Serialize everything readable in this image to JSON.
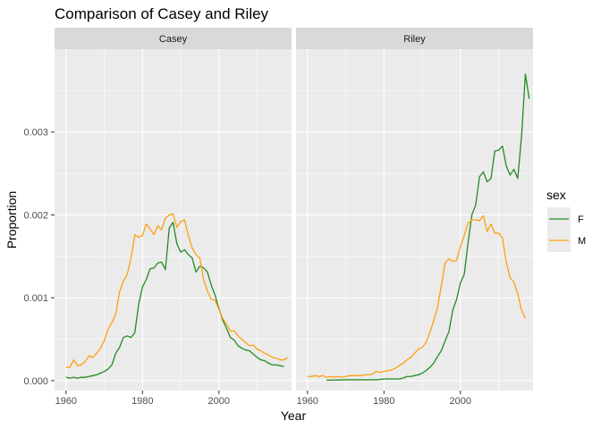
{
  "chart_data": {
    "type": "line",
    "title": "Comparison of Casey and Riley",
    "xlabel": "Year",
    "ylabel": "Proportion",
    "xlim": [
      1957,
      2019
    ],
    "ylim": [
      -0.00012,
      0.004
    ],
    "x_ticks": [
      1960,
      1980,
      2000
    ],
    "x_tick_labels": [
      "1960",
      "1980",
      "2000"
    ],
    "y_ticks": [
      0,
      0.001,
      0.002,
      0.003
    ],
    "y_tick_labels": [
      "0.000",
      "0.001",
      "0.002",
      "0.003"
    ],
    "grid": true,
    "legend": {
      "title": "sex",
      "position": "right",
      "entries": [
        {
          "label": "F",
          "color": "#228B22"
        },
        {
          "label": "M",
          "color": "#FF9F0F"
        }
      ]
    },
    "facets": [
      {
        "label": "Casey",
        "series": [
          {
            "name": "F",
            "color": "#228B22",
            "points": [
              [
                1960,
                4e-05
              ],
              [
                1961,
                3e-05
              ],
              [
                1962,
                4e-05
              ],
              [
                1963,
                3e-05
              ],
              [
                1964,
                4e-05
              ],
              [
                1965,
                4e-05
              ],
              [
                1966,
                5e-05
              ],
              [
                1967,
                6e-05
              ],
              [
                1968,
                7e-05
              ],
              [
                1969,
                9e-05
              ],
              [
                1970,
                0.00011
              ],
              [
                1971,
                0.00014
              ],
              [
                1972,
                0.00019
              ],
              [
                1973,
                0.00033
              ],
              [
                1974,
                0.0004
              ],
              [
                1975,
                0.00052
              ],
              [
                1976,
                0.00054
              ],
              [
                1977,
                0.00052
              ],
              [
                1978,
                0.00058
              ],
              [
                1979,
                0.00092
              ],
              [
                1980,
                0.00113
              ],
              [
                1981,
                0.00122
              ],
              [
                1982,
                0.00135
              ],
              [
                1983,
                0.00136
              ],
              [
                1984,
                0.00142
              ],
              [
                1985,
                0.00143
              ],
              [
                1986,
                0.00134
              ],
              [
                1987,
                0.00184
              ],
              [
                1988,
                0.00191
              ],
              [
                1989,
                0.00165
              ],
              [
                1990,
                0.00155
              ],
              [
                1991,
                0.00158
              ],
              [
                1992,
                0.00152
              ],
              [
                1993,
                0.00148
              ],
              [
                1994,
                0.00131
              ],
              [
                1995,
                0.00138
              ],
              [
                1996,
                0.00136
              ],
              [
                1997,
                0.00131
              ],
              [
                1998,
                0.00115
              ],
              [
                1999,
                0.00103
              ],
              [
                2000,
                0.00087
              ],
              [
                2001,
                0.00073
              ],
              [
                2002,
                0.00063
              ],
              [
                2003,
                0.00052
              ],
              [
                2004,
                0.00049
              ],
              [
                2005,
                0.00042
              ],
              [
                2006,
                0.00039
              ],
              [
                2007,
                0.00037
              ],
              [
                2008,
                0.00036
              ],
              [
                2009,
                0.00032
              ],
              [
                2010,
                0.00028
              ],
              [
                2011,
                0.00025
              ],
              [
                2012,
                0.00024
              ],
              [
                2013,
                0.00021
              ],
              [
                2014,
                0.00019
              ],
              [
                2015,
                0.00019
              ],
              [
                2016,
                0.00018
              ],
              [
                2017,
                0.00017
              ]
            ]
          },
          {
            "name": "M",
            "color": "#FF9F0F",
            "points": [
              [
                1960,
                0.00016
              ],
              [
                1961,
                0.00016
              ],
              [
                1962,
                0.00025
              ],
              [
                1963,
                0.00018
              ],
              [
                1964,
                0.00019
              ],
              [
                1965,
                0.00023
              ],
              [
                1966,
                0.0003
              ],
              [
                1967,
                0.00028
              ],
              [
                1968,
                0.00033
              ],
              [
                1969,
                0.00039
              ],
              [
                1970,
                0.00048
              ],
              [
                1971,
                0.00062
              ],
              [
                1972,
                0.0007
              ],
              [
                1973,
                0.0008
              ],
              [
                1974,
                0.00107
              ],
              [
                1975,
                0.0012
              ],
              [
                1976,
                0.00128
              ],
              [
                1977,
                0.00148
              ],
              [
                1978,
                0.00176
              ],
              [
                1979,
                0.00173
              ],
              [
                1980,
                0.00175
              ],
              [
                1981,
                0.00189
              ],
              [
                1982,
                0.00183
              ],
              [
                1983,
                0.00176
              ],
              [
                1984,
                0.00187
              ],
              [
                1985,
                0.00182
              ],
              [
                1986,
                0.00196
              ],
              [
                1987,
                0.002
              ],
              [
                1988,
                0.00201
              ],
              [
                1989,
                0.00185
              ],
              [
                1990,
                0.00192
              ],
              [
                1991,
                0.00194
              ],
              [
                1992,
                0.00175
              ],
              [
                1993,
                0.0016
              ],
              [
                1994,
                0.00152
              ],
              [
                1995,
                0.00148
              ],
              [
                1996,
                0.00122
              ],
              [
                1997,
                0.00108
              ],
              [
                1998,
                0.00098
              ],
              [
                1999,
                0.00097
              ],
              [
                2000,
                0.00086
              ],
              [
                2001,
                0.00075
              ],
              [
                2002,
                0.00068
              ],
              [
                2003,
                0.0006
              ],
              [
                2004,
                0.0006
              ],
              [
                2005,
                0.00054
              ],
              [
                2006,
                0.0005
              ],
              [
                2007,
                0.00046
              ],
              [
                2008,
                0.00042
              ],
              [
                2009,
                0.00043
              ],
              [
                2010,
                0.00038
              ],
              [
                2011,
                0.00036
              ],
              [
                2012,
                0.00033
              ],
              [
                2013,
                0.00031
              ],
              [
                2014,
                0.00028
              ],
              [
                2015,
                0.00027
              ],
              [
                2016,
                0.00025
              ],
              [
                2017,
                0.00025
              ],
              [
                2018,
                0.00028
              ]
            ]
          }
        ]
      },
      {
        "label": "Riley",
        "series": [
          {
            "name": "F",
            "color": "#228B22",
            "points": [
              [
                1965,
                5e-06
              ],
              [
                1970,
                1e-05
              ],
              [
                1975,
                1e-05
              ],
              [
                1978,
                1e-05
              ],
              [
                1980,
                2e-05
              ],
              [
                1982,
                2e-05
              ],
              [
                1984,
                2e-05
              ],
              [
                1985,
                3e-05
              ],
              [
                1986,
                5e-05
              ],
              [
                1987,
                5e-05
              ],
              [
                1988,
                6e-05
              ],
              [
                1989,
                7e-05
              ],
              [
                1990,
                9e-05
              ],
              [
                1991,
                0.00012
              ],
              [
                1992,
                0.00016
              ],
              [
                1993,
                0.00021
              ],
              [
                1994,
                0.00029
              ],
              [
                1995,
                0.00036
              ],
              [
                1996,
                0.00048
              ],
              [
                1997,
                0.00059
              ],
              [
                1998,
                0.00085
              ],
              [
                1999,
                0.00098
              ],
              [
                2000,
                0.00118
              ],
              [
                2001,
                0.00128
              ],
              [
                2002,
                0.00166
              ],
              [
                2003,
                0.002
              ],
              [
                2004,
                0.00212
              ],
              [
                2005,
                0.00246
              ],
              [
                2006,
                0.00252
              ],
              [
                2007,
                0.0024
              ],
              [
                2008,
                0.00244
              ],
              [
                2009,
                0.00277
              ],
              [
                2010,
                0.00278
              ],
              [
                2011,
                0.00283
              ],
              [
                2012,
                0.00259
              ],
              [
                2013,
                0.00248
              ],
              [
                2014,
                0.00255
              ],
              [
                2015,
                0.00244
              ],
              [
                2016,
                0.00295
              ],
              [
                2017,
                0.0037
              ],
              [
                2018,
                0.0034
              ]
            ]
          },
          {
            "name": "M",
            "color": "#FF9F0F",
            "points": [
              [
                1960,
                5e-05
              ],
              [
                1961,
                5e-05
              ],
              [
                1962,
                6e-05
              ],
              [
                1963,
                5e-05
              ],
              [
                1964,
                6e-05
              ],
              [
                1965,
                4e-05
              ],
              [
                1966,
                5e-05
              ],
              [
                1967,
                4e-05
              ],
              [
                1968,
                5e-05
              ],
              [
                1969,
                4e-05
              ],
              [
                1970,
                5e-05
              ],
              [
                1971,
                6e-05
              ],
              [
                1972,
                6e-05
              ],
              [
                1973,
                6e-05
              ],
              [
                1974,
                6e-05
              ],
              [
                1975,
                7e-05
              ],
              [
                1976,
                7e-05
              ],
              [
                1977,
                8e-05
              ],
              [
                1978,
                0.00011
              ],
              [
                1979,
                0.0001
              ],
              [
                1980,
                0.00011
              ],
              [
                1981,
                0.00012
              ],
              [
                1982,
                0.00013
              ],
              [
                1983,
                0.00015
              ],
              [
                1984,
                0.00018
              ],
              [
                1985,
                0.00021
              ],
              [
                1986,
                0.00025
              ],
              [
                1987,
                0.00028
              ],
              [
                1988,
                0.00033
              ],
              [
                1989,
                0.00038
              ],
              [
                1990,
                0.0004
              ],
              [
                1991,
                0.00046
              ],
              [
                1992,
                0.00058
              ],
              [
                1993,
                0.00072
              ],
              [
                1994,
                0.00088
              ],
              [
                1995,
                0.00114
              ],
              [
                1996,
                0.00142
              ],
              [
                1997,
                0.00147
              ],
              [
                1998,
                0.00144
              ],
              [
                1999,
                0.00145
              ],
              [
                2000,
                0.00162
              ],
              [
                2001,
                0.00175
              ],
              [
                2002,
                0.0019
              ],
              [
                2003,
                0.00194
              ],
              [
                2004,
                0.00194
              ],
              [
                2005,
                0.00193
              ],
              [
                2006,
                0.00199
              ],
              [
                2007,
                0.0018
              ],
              [
                2008,
                0.00189
              ],
              [
                2009,
                0.00178
              ],
              [
                2010,
                0.00178
              ],
              [
                2011,
                0.00172
              ],
              [
                2012,
                0.00143
              ],
              [
                2013,
                0.00124
              ],
              [
                2014,
                0.00119
              ],
              [
                2015,
                0.00105
              ],
              [
                2016,
                0.00085
              ],
              [
                2017,
                0.00075
              ]
            ]
          }
        ]
      }
    ]
  }
}
